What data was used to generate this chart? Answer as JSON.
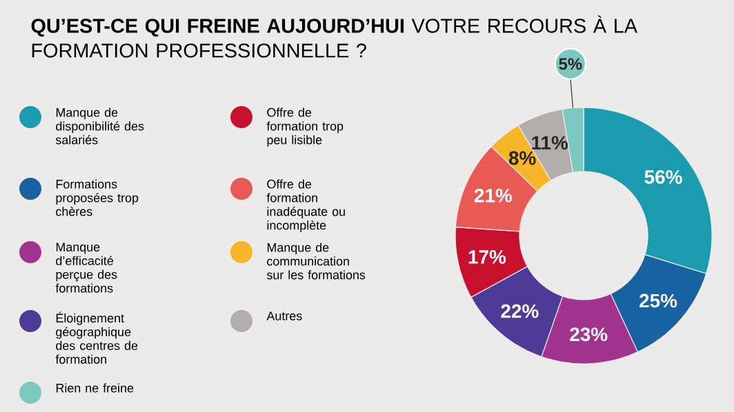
{
  "chart_data": {
    "type": "donut",
    "title": "**QU’EST-CE QUI FREINE AUJOURD’HUI** VOTRE RECOURS À LA FORMATION PROFESSIONNELLE ?",
    "categories": [
      "Manque de disponibilité des salariés",
      "Formations proposées trop chères",
      "Manque d’efficacité perçue des formations",
      "Éloignement géographique des centres de formation",
      "Offre de formation trop peu lisible",
      "Offre de formation inadéquate ou incomplète",
      "Manque de communication sur les formations",
      "Autres",
      "Rien ne freine"
    ],
    "values": [
      56,
      25,
      23,
      22,
      17,
      21,
      8,
      11,
      5
    ],
    "colors": [
      "#1a9bb0",
      "#1862a2",
      "#a2338f",
      "#4f3a97",
      "#c8102e",
      "#e85a55",
      "#f7b52a",
      "#b3aeac",
      "#7cc7c0"
    ],
    "value_labels": [
      "56%",
      "25%",
      "23%",
      "22%",
      "17%",
      "21%",
      "8%",
      "11%",
      "5%"
    ],
    "legend": "left"
  }
}
